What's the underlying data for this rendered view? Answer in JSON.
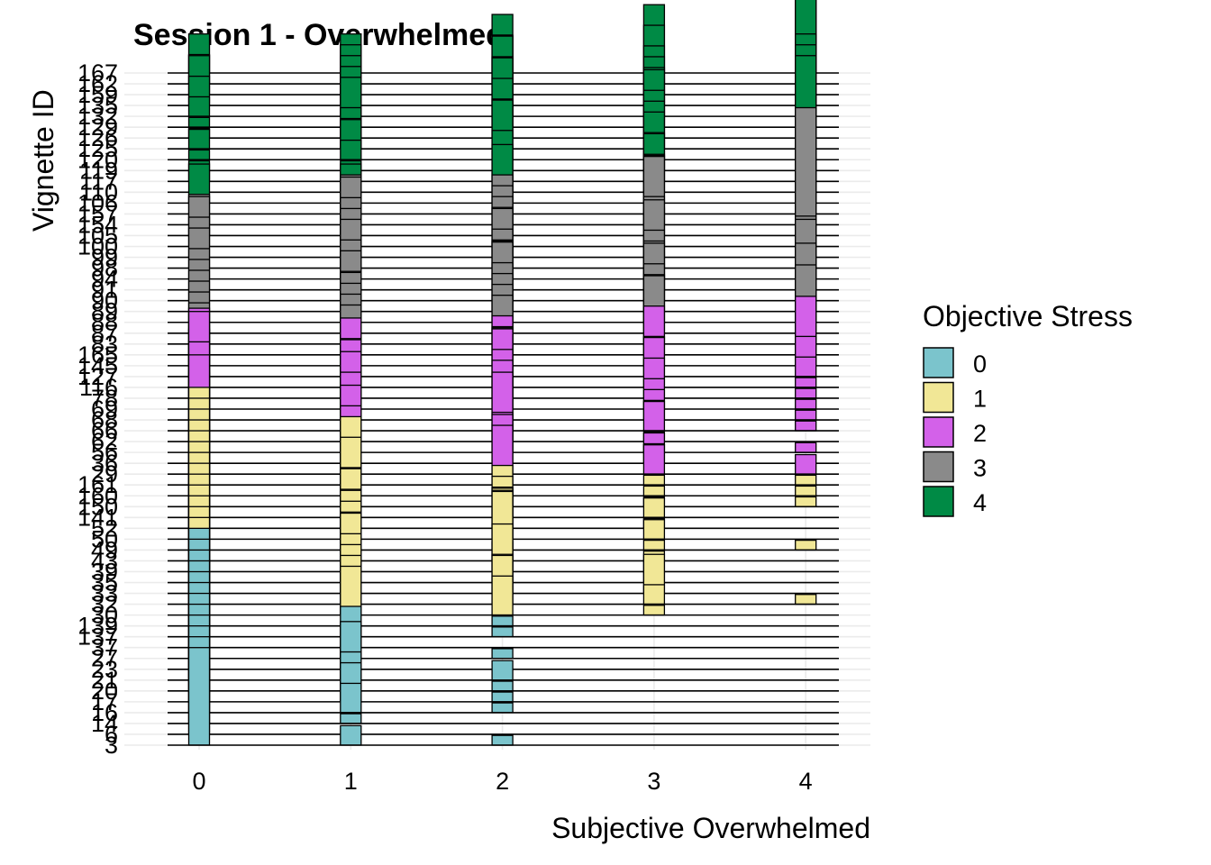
{
  "chart_data": {
    "type": "ridgeline-histogram",
    "title": "Session 1 - Overwhelmed",
    "xlabel": "Subjective Overwhelmed",
    "ylabel": "Vignette ID",
    "x_ticks": [
      "0",
      "1",
      "2",
      "3",
      "4"
    ],
    "xlim": [
      -0.5,
      4.35
    ],
    "legend": {
      "title": "Objective Stress",
      "position": "right",
      "items": [
        {
          "label": "0",
          "color": "#7bc4cc"
        },
        {
          "label": "1",
          "color": "#f1e796"
        },
        {
          "label": "2",
          "color": "#d361e9"
        },
        {
          "label": "3",
          "color": "#8a8a8a"
        },
        {
          "label": "4",
          "color": "#008a45"
        }
      ]
    },
    "rows": [
      {
        "id": "3",
        "stress": 0,
        "counts": [
          10,
          2,
          1,
          0,
          0
        ]
      },
      {
        "id": "6",
        "stress": 0,
        "counts": [
          10,
          0,
          0,
          0,
          0
        ]
      },
      {
        "id": "14",
        "stress": 0,
        "counts": [
          10,
          1,
          0,
          0,
          0
        ]
      },
      {
        "id": "16",
        "stress": 0,
        "counts": [
          10,
          3,
          1,
          0,
          0
        ]
      },
      {
        "id": "17",
        "stress": 0,
        "counts": [
          10,
          4,
          1,
          0,
          0
        ]
      },
      {
        "id": "20",
        "stress": 0,
        "counts": [
          10,
          4,
          1,
          0,
          0
        ]
      },
      {
        "id": "21",
        "stress": 0,
        "counts": [
          10,
          6,
          2,
          0,
          0
        ]
      },
      {
        "id": "23",
        "stress": 0,
        "counts": [
          10,
          2,
          0,
          0,
          0
        ]
      },
      {
        "id": "27",
        "stress": 0,
        "counts": [
          10,
          1,
          1,
          0,
          0
        ]
      },
      {
        "id": "37",
        "stress": 0,
        "counts": [
          10,
          1,
          0,
          0,
          0
        ]
      },
      {
        "id": "137",
        "stress": 0,
        "counts": [
          10,
          1,
          1,
          0,
          0
        ]
      },
      {
        "id": "139",
        "stress": 0,
        "counts": [
          10,
          2,
          1,
          0,
          0
        ]
      },
      {
        "id": "30",
        "stress": 1,
        "counts": [
          10,
          5,
          4,
          1,
          0
        ]
      },
      {
        "id": "32",
        "stress": 1,
        "counts": [
          10,
          5,
          5,
          2,
          1
        ]
      },
      {
        "id": "33",
        "stress": 1,
        "counts": [
          10,
          5,
          4,
          4,
          0
        ]
      },
      {
        "id": "35",
        "stress": 1,
        "counts": [
          10,
          5,
          6,
          1,
          0
        ]
      },
      {
        "id": "39",
        "stress": 1,
        "counts": [
          10,
          6,
          3,
          1,
          0
        ]
      },
      {
        "id": "43",
        "stress": 1,
        "counts": [
          10,
          5,
          2,
          1,
          0
        ]
      },
      {
        "id": "49",
        "stress": 1,
        "counts": [
          10,
          5,
          6,
          1,
          1
        ]
      },
      {
        "id": "50",
        "stress": 1,
        "counts": [
          10,
          5,
          5,
          2,
          0
        ]
      },
      {
        "id": "52",
        "stress": 1,
        "counts": [
          10,
          4,
          2,
          1,
          0
        ]
      },
      {
        "id": "141",
        "stress": 1,
        "counts": [
          10,
          5,
          3,
          2,
          0
        ]
      },
      {
        "id": "150",
        "stress": 1,
        "counts": [
          10,
          4,
          2,
          1,
          1
        ]
      },
      {
        "id": "160",
        "stress": 1,
        "counts": [
          10,
          6,
          2,
          1,
          1
        ]
      },
      {
        "id": "161",
        "stress": 1,
        "counts": [
          10,
          7,
          2,
          1,
          1
        ]
      },
      {
        "id": "29",
        "stress": 2,
        "counts": [
          5,
          7,
          5,
          3,
          2
        ]
      },
      {
        "id": "36",
        "stress": 2,
        "counts": [
          3,
          8,
          5,
          2,
          0
        ]
      },
      {
        "id": "56",
        "stress": 2,
        "counts": [
          10,
          6,
          3,
          2,
          1
        ]
      },
      {
        "id": "62",
        "stress": 2,
        "counts": [
          7,
          5,
          3,
          1,
          0
        ]
      },
      {
        "id": "66",
        "stress": 2,
        "counts": [
          6,
          6,
          6,
          3,
          1
        ]
      },
      {
        "id": "68",
        "stress": 2,
        "counts": [
          8,
          7,
          4,
          2,
          1
        ]
      },
      {
        "id": "69",
        "stress": 2,
        "counts": [
          10,
          5,
          5,
          2,
          1
        ]
      },
      {
        "id": "78",
        "stress": 2,
        "counts": [
          7,
          6,
          5,
          2,
          1
        ]
      },
      {
        "id": "116",
        "stress": 2,
        "counts": [
          6,
          5,
          6,
          3,
          1
        ]
      },
      {
        "id": "127",
        "stress": 2,
        "counts": [
          7,
          6,
          5,
          4,
          2
        ]
      },
      {
        "id": "145",
        "stress": 2,
        "counts": [
          2,
          3,
          4,
          3,
          3
        ]
      },
      {
        "id": "165",
        "stress": 2,
        "counts": [
          1,
          2,
          4,
          5,
          6
        ]
      },
      {
        "id": "83",
        "stress": 3,
        "counts": [
          2,
          4,
          5,
          7,
          1
        ]
      },
      {
        "id": "87",
        "stress": 3,
        "counts": [
          2,
          4,
          5,
          6,
          7
        ]
      },
      {
        "id": "88",
        "stress": 3,
        "counts": [
          2,
          4,
          5,
          6,
          2
        ]
      },
      {
        "id": "89",
        "stress": 3,
        "counts": [
          2,
          4,
          5,
          7,
          7
        ]
      },
      {
        "id": "90",
        "stress": 3,
        "counts": [
          2,
          3,
          6,
          5,
          2
        ]
      },
      {
        "id": "91",
        "stress": 3,
        "counts": [
          2,
          4,
          5,
          5,
          3
        ]
      },
      {
        "id": "94",
        "stress": 3,
        "counts": [
          2,
          4,
          4,
          5,
          2
        ]
      },
      {
        "id": "98",
        "stress": 3,
        "counts": [
          2,
          5,
          4,
          7,
          5
        ]
      },
      {
        "id": "99",
        "stress": 3,
        "counts": [
          3,
          5,
          5,
          5,
          2
        ]
      },
      {
        "id": "100",
        "stress": 3,
        "counts": [
          3,
          5,
          4,
          4,
          2
        ]
      },
      {
        "id": "105",
        "stress": 3,
        "counts": [
          4,
          6,
          4,
          4,
          2
        ]
      },
      {
        "id": "154",
        "stress": 3,
        "counts": [
          1,
          3,
          4,
          7,
          12
        ]
      },
      {
        "id": "157",
        "stress": 3,
        "counts": [
          2,
          4,
          4,
          6,
          6
        ]
      },
      {
        "id": "106",
        "stress": 4,
        "counts": [
          4,
          4,
          6,
          5,
          3
        ]
      },
      {
        "id": "110",
        "stress": 4,
        "counts": [
          0,
          1,
          2,
          6,
          14
        ]
      },
      {
        "id": "117",
        "stress": 4,
        "counts": [
          1,
          1,
          1,
          5,
          14
        ]
      },
      {
        "id": "119",
        "stress": 4,
        "counts": [
          1,
          1,
          2,
          6,
          14
        ]
      },
      {
        "id": "120",
        "stress": 4,
        "counts": [
          1,
          2,
          3,
          6,
          8
        ]
      },
      {
        "id": "125",
        "stress": 4,
        "counts": [
          2,
          3,
          5,
          6,
          3
        ]
      },
      {
        "id": "126",
        "stress": 4,
        "counts": [
          1,
          2,
          4,
          7,
          6
        ]
      },
      {
        "id": "129",
        "stress": 4,
        "counts": [
          1,
          2,
          5,
          5,
          14
        ]
      },
      {
        "id": "132",
        "stress": 4,
        "counts": [
          2,
          4,
          6,
          5,
          6
        ]
      },
      {
        "id": "135",
        "stress": 4,
        "counts": [
          3,
          4,
          5,
          5,
          5
        ]
      },
      {
        "id": "159",
        "stress": 4,
        "counts": [
          4,
          4,
          6,
          5,
          5
        ]
      },
      {
        "id": "162",
        "stress": 4,
        "counts": [
          3,
          4,
          5,
          6,
          5
        ]
      },
      {
        "id": "167",
        "stress": 4,
        "counts": [
          4,
          4,
          6,
          7,
          8
        ]
      }
    ]
  }
}
